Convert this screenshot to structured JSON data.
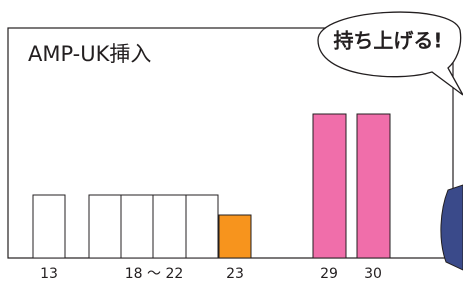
{
  "title": "AMP-UK挿入",
  "speech": "持ち上げる!",
  "labels": [
    "13",
    "18 〜 22",
    "23",
    "29",
    "30"
  ]
}
